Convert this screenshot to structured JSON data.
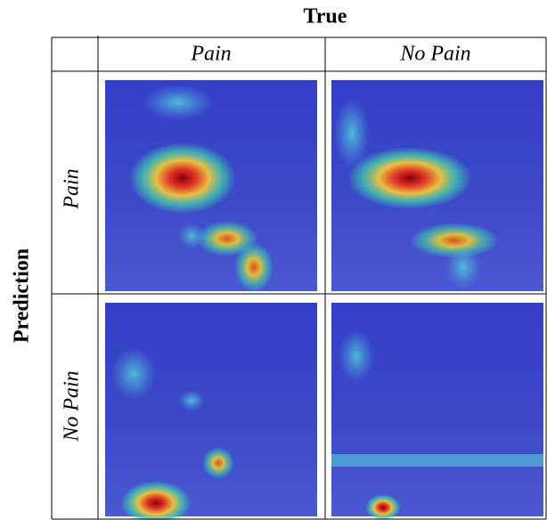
{
  "header": {
    "column_title": "True",
    "row_title": "Prediction"
  },
  "columns": [
    "Pain",
    "No Pain"
  ],
  "rows": [
    "Pain",
    "No Pain"
  ]
}
